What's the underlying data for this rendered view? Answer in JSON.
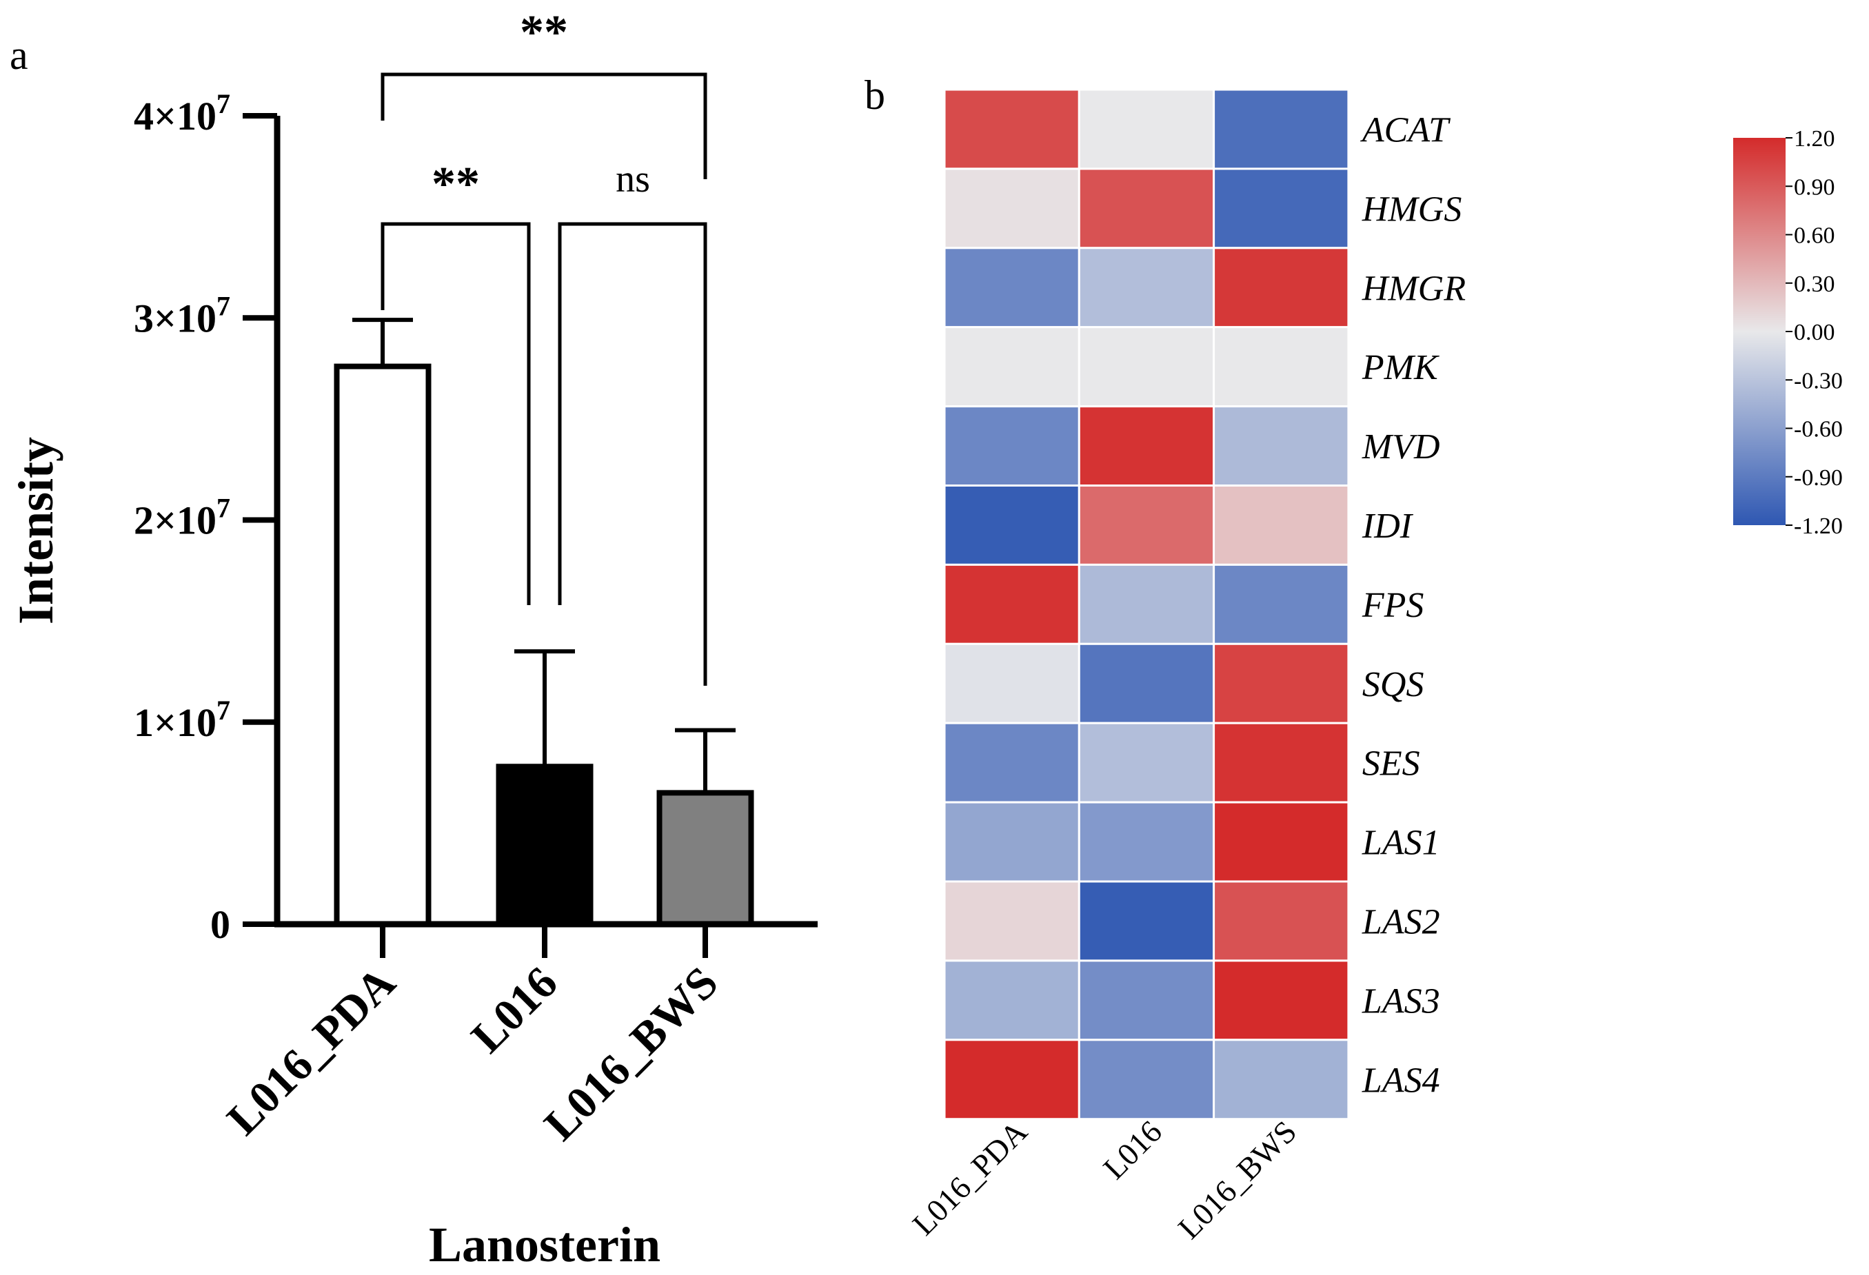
{
  "chart_data": [
    {
      "panel": "a",
      "type": "bar",
      "xlabel": "Lanosterin",
      "ylabel": "Intensity",
      "categories": [
        "L016_PDA",
        "L016",
        "L016_BWS"
      ],
      "values": [
        27600000,
        7800000,
        6500000
      ],
      "errors": [
        2300000,
        5700000,
        3100000
      ],
      "bar_colors": [
        "#ffffff",
        "#000000",
        "#808080"
      ],
      "ylim": [
        0,
        40000000
      ],
      "yticks": [
        {
          "value": 0,
          "label": "0",
          "base": "0",
          "exp": ""
        },
        {
          "value": 10000000,
          "label": "1×10^7",
          "base": "1×10",
          "exp": "7"
        },
        {
          "value": 20000000,
          "label": "2×10^7",
          "base": "2×10",
          "exp": "7"
        },
        {
          "value": 30000000,
          "label": "3×10^7",
          "base": "3×10",
          "exp": "7"
        },
        {
          "value": 40000000,
          "label": "4×10^7",
          "base": "4×10",
          "exp": "7"
        }
      ],
      "significance": [
        {
          "pair": [
            0,
            2
          ],
          "label": "**"
        },
        {
          "pair": [
            0,
            1
          ],
          "label": "**"
        },
        {
          "pair": [
            1,
            2
          ],
          "label": "ns"
        }
      ]
    },
    {
      "panel": "b",
      "type": "heatmap",
      "columns": [
        "L016_PDA",
        "L016",
        "L016_BWS"
      ],
      "rows": [
        "ACAT",
        "HMGS",
        "HMGR",
        "PMK",
        "MVD",
        "IDI",
        "FPS",
        "SQS",
        "SES",
        "LAS1",
        "LAS2",
        "LAS3",
        "LAS4"
      ],
      "values": [
        [
          1.0,
          0.0,
          -1.0
        ],
        [
          0.05,
          0.95,
          -1.05
        ],
        [
          -0.8,
          -0.35,
          1.12
        ],
        [
          0.0,
          0.0,
          0.0
        ],
        [
          -0.8,
          1.15,
          -0.38
        ],
        [
          -1.15,
          0.8,
          0.25
        ],
        [
          1.15,
          -0.38,
          -0.8
        ],
        [
          -0.05,
          -0.95,
          1.05
        ],
        [
          -0.8,
          -0.35,
          1.15
        ],
        [
          -0.55,
          -0.65,
          1.2
        ],
        [
          0.12,
          -1.15,
          0.95
        ],
        [
          -0.45,
          -0.75,
          1.2
        ],
        [
          1.2,
          -0.75,
          -0.45
        ]
      ],
      "color_scale": {
        "min": -1.2,
        "max": 1.2,
        "low": "#2e57b2",
        "mid": "#e8e8ea",
        "high": "#d42b2b"
      },
      "colorbar_ticks": [
        "1.20",
        "0.90",
        "0.60",
        "0.30",
        "0.00",
        "-0.30",
        "-0.60",
        "-0.90",
        "-1.20"
      ]
    }
  ],
  "labels": {
    "panel_a": "a",
    "panel_b": "b"
  }
}
